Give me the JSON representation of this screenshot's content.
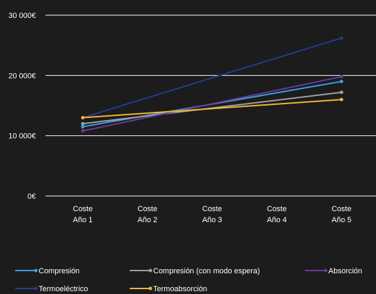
{
  "chart_data": {
    "type": "line",
    "categories": [
      [
        "Coste",
        "Año 1"
      ],
      [
        "Coste",
        "Año 2"
      ],
      [
        "Coste",
        "Año 3"
      ],
      [
        "Coste",
        "Año 4"
      ],
      [
        "Coste",
        "Año 5"
      ]
    ],
    "y_ticks": [
      {
        "value": 0,
        "label": "0€"
      },
      {
        "value": 10000,
        "label": "10 000€"
      },
      {
        "value": 20000,
        "label": "20 000€"
      },
      {
        "value": 30000,
        "label": "30 000€"
      }
    ],
    "ylim": [
      0,
      30000
    ],
    "grid": true,
    "legend_position": "bottom",
    "series": [
      {
        "name": "Compresión",
        "color": "#3aa0e0",
        "values": [
          11500,
          null,
          null,
          null,
          19000
        ]
      },
      {
        "name": "Compresión (con modo espera)",
        "color": "#a0a0a0",
        "values": [
          12000,
          null,
          null,
          null,
          17200
        ]
      },
      {
        "name": "Absorción",
        "color": "#6a3a9a",
        "values": [
          10800,
          null,
          null,
          null,
          19800
        ]
      },
      {
        "name": "Termoeléctrico",
        "color": "#1e3f8a",
        "values": [
          13000,
          null,
          null,
          null,
          26200
        ]
      },
      {
        "name": "Termoabsorción",
        "color": "#f0b830",
        "values": [
          13000,
          null,
          null,
          null,
          16000
        ]
      }
    ]
  }
}
